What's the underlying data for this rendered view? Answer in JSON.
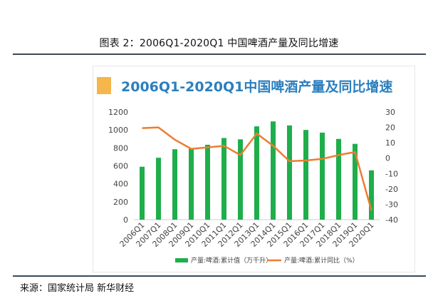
{
  "figure_caption": "图表 2：2006Q1-2020Q1 中国啤酒产量及同比增速",
  "source_note": "来源：国家统计局 新华财经",
  "colors": {
    "bar": "#1fae4b",
    "line": "#ed7d31",
    "title": "#2b7fbf",
    "accent": "#f5b64a"
  },
  "chart_data": {
    "type": "bar",
    "title": "2006Q1-2020Q1中国啤酒产量及同比增速",
    "categories": [
      "2006Q1",
      "2007Q1",
      "2008Q1",
      "2009Q1",
      "2010Q1",
      "2011Q1",
      "2012Q1",
      "2013Q1",
      "2014Q1",
      "2015Q1",
      "2016Q1",
      "2017Q1",
      "2018Q1",
      "2019Q1",
      "2020Q1"
    ],
    "series": [
      {
        "name": "产量:啤酒:累计值（万千升）",
        "type": "bar",
        "axis": "left",
        "values": [
          590,
          690,
          785,
          795,
          835,
          910,
          895,
          1040,
          1095,
          1050,
          1000,
          970,
          900,
          845,
          550
        ]
      },
      {
        "name": "产量:啤酒:累计同比（%）",
        "type": "line",
        "axis": "right",
        "values": [
          19.5,
          20,
          12,
          6,
          7,
          8,
          2,
          16,
          8,
          -2,
          -1.5,
          -0.5,
          2,
          4,
          -34
        ]
      }
    ],
    "y_left": {
      "range": [
        0,
        1200
      ],
      "ticks": [
        "0",
        "200",
        "400",
        "600",
        "800",
        "1000",
        "1200"
      ]
    },
    "y_right": {
      "range": [
        -40,
        30
      ],
      "ticks": [
        "-40",
        "-30",
        "-20",
        "-10",
        "0",
        "10",
        "20",
        "30"
      ]
    },
    "legend_position": "bottom"
  }
}
